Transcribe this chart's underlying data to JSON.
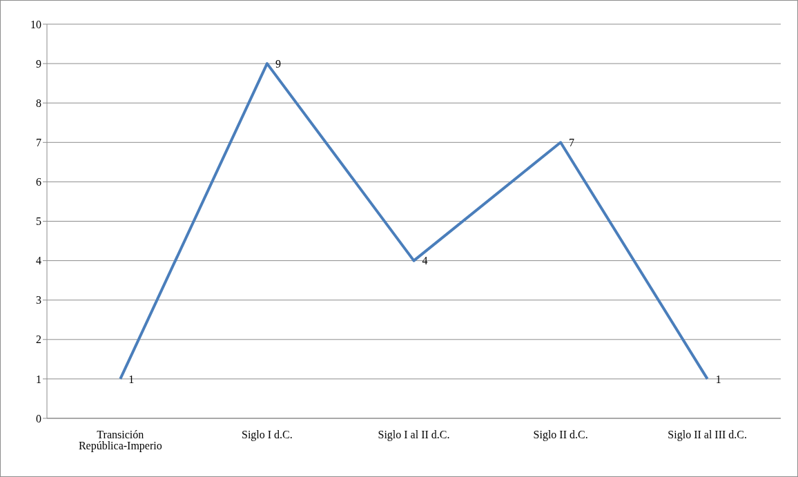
{
  "chart_data": {
    "type": "line",
    "categories": [
      "Transición República-Imperio",
      "Siglo I d.C.",
      "Siglo I al II d.C.",
      "Siglo II d.C.",
      "Siglo II al III d.C."
    ],
    "series": [
      {
        "color": "#4a7ebb",
        "values": [
          1,
          9,
          4,
          7,
          1
        ]
      }
    ],
    "ylim": [
      0,
      10
    ],
    "yticks": [
      0,
      1,
      2,
      3,
      4,
      5,
      6,
      7,
      8,
      9,
      10
    ],
    "grid": "y",
    "legend": false,
    "marker": "none",
    "line_style": "solid",
    "data_labels": true
  }
}
